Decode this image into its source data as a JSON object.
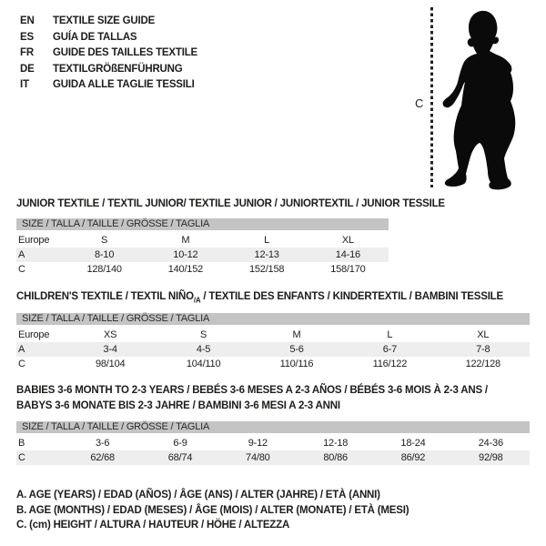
{
  "page": {
    "background": "#ffffff",
    "text_color": "#1d1d1b"
  },
  "colors": {
    "table_header_bg": "#c4c4c4",
    "row_alt_bg": "#eeeeee",
    "silhouette": "#0a0a0a",
    "dotted_line": "#222222"
  },
  "language_guide": {
    "items": [
      {
        "code": "EN",
        "label": "TEXTILE SIZE GUIDE"
      },
      {
        "code": "ES",
        "label": "GUÍA DE TALLAS"
      },
      {
        "code": "FR",
        "label": "GUIDE DES TAILLES TEXTILE"
      },
      {
        "code": "DE",
        "label": "TEXTILGRÖßENFÜHRUNG"
      },
      {
        "code": "IT",
        "label": "GUIDA ALLE TAGLIE TESSILI"
      }
    ]
  },
  "figure": {
    "image": "toddler-silhouette",
    "measure_label": "C"
  },
  "sections": [
    {
      "heading": "JUNIOR TEXTILE / TEXTIL JUNIOR/ TEXTILE JUNIOR / JUNIORTEXTIL / JUNIOR TESSILE",
      "table": {
        "header": "SIZE / TALLA / TAILLE / GRÖSSE / TAGLIA",
        "rows": [
          {
            "label": "Europe",
            "values": [
              "S",
              "M",
              "L",
              "XL"
            ],
            "shaded": false
          },
          {
            "label": "A",
            "values": [
              "8-10",
              "10-12",
              "12-13",
              "14-16"
            ],
            "shaded": true
          },
          {
            "label": "C",
            "values": [
              "128/140",
              "140/152",
              "152/158",
              "158/170"
            ],
            "shaded": false
          }
        ]
      }
    },
    {
      "heading_pre": "CHILDREN'S TEXTILE / TEXTIL NIÑO",
      "heading_sub": "/A",
      "heading_post": " / TEXTILE DES ENFANTS / KINDERTEXTIL / BAMBINI TESSILE",
      "table": {
        "header": "SIZE / TALLA / TAILLE / GRÖSSE / TAGLIA",
        "rows": [
          {
            "label": "Europe",
            "values": [
              "XS",
              "S",
              "M",
              "L",
              "XL"
            ],
            "shaded": false
          },
          {
            "label": "A",
            "values": [
              "3-4",
              "4-5",
              "5-6",
              "6-7",
              "7-8"
            ],
            "shaded": true
          },
          {
            "label": "C",
            "values": [
              "98/104",
              "104/110",
              "110/116",
              "116/122",
              "122/128"
            ],
            "shaded": false
          }
        ]
      }
    },
    {
      "heading_line1": "BABIES 3-6 MONTH TO 2-3 YEARS / BEBÉS 3-6 MESES A 2-3 AÑOS / BÉBÉS 3-6 MOIS À 2-3 ANS /",
      "heading_line2": "BABYS 3-6 MONATE BIS 2-3 JAHRE / BAMBINI 3-6 MESI A 2-3 ANNI",
      "table": {
        "header": "SIZE / TALLA / TAILLE / GRÖSSE / TAGLIA",
        "rows": [
          {
            "label": "B",
            "values": [
              "3-6",
              "6-9",
              "9-12",
              "12-18",
              "18-24",
              "24-36"
            ],
            "shaded": false
          },
          {
            "label": "C",
            "values": [
              "62/68",
              "68/74",
              "74/80",
              "80/86",
              "86/92",
              "92/98"
            ],
            "shaded": true
          }
        ]
      }
    }
  ],
  "footnotes": [
    "A. AGE (YEARS) / EDAD (AÑOS) / ÂGE (ANS) / ALTER (JAHRE) / ETÀ (ANNI)",
    "B. AGE (MONTHS) / EDAD (MESES) / ÂGE (MOIS) / ALTER (MONATE) / ETÀ (MESI)",
    "C. (cm) HEIGHT / ALTURA / HAUTEUR / HÖHE / ALTEZZA"
  ]
}
